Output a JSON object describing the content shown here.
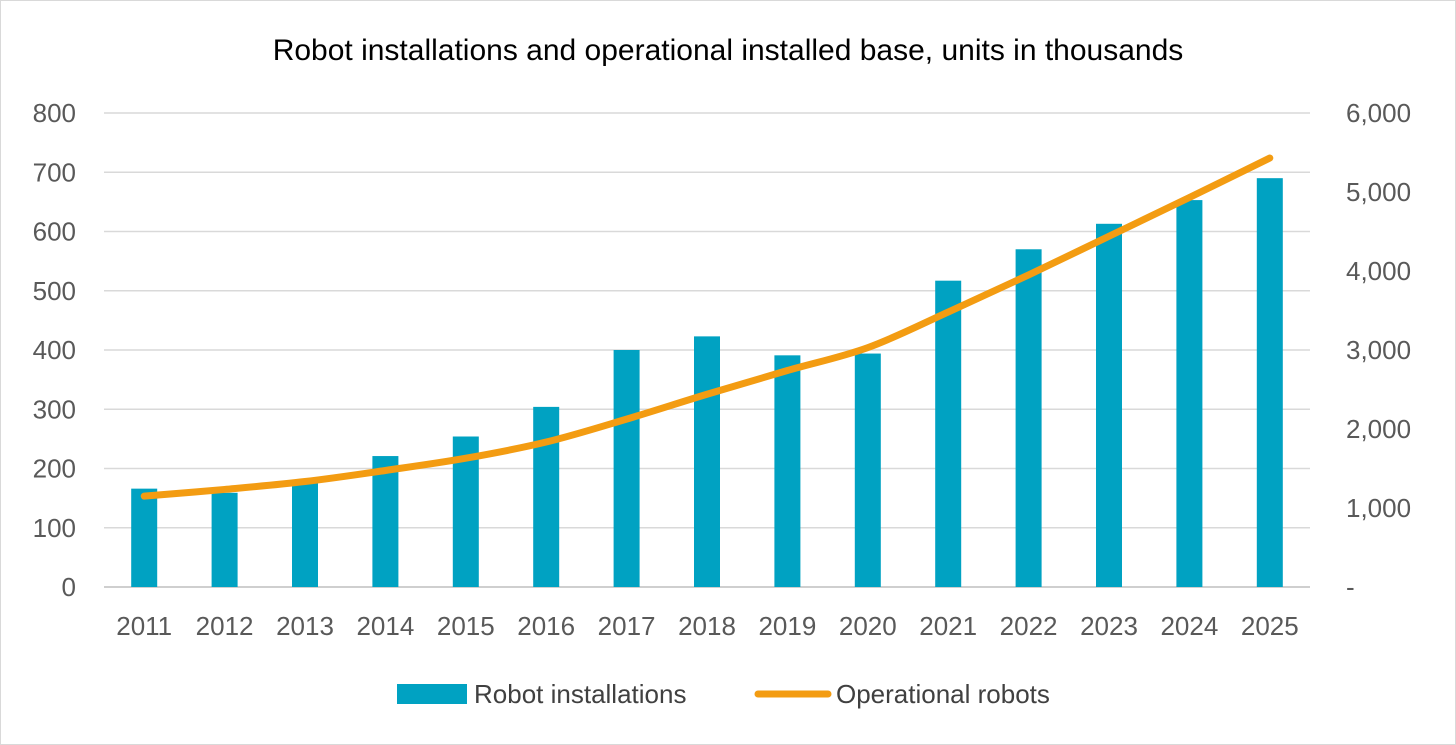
{
  "chart_data": {
    "type": "bar",
    "title": "Robot installations and operational installed base, units in thousands",
    "categories": [
      "2011",
      "2012",
      "2013",
      "2014",
      "2015",
      "2016",
      "2017",
      "2018",
      "2019",
      "2020",
      "2021",
      "2022",
      "2023",
      "2024",
      "2025"
    ],
    "series": [
      {
        "name": "Robot installations",
        "type": "bar",
        "axis": "left",
        "color": "#00A2C2",
        "values": [
          166,
          159,
          178,
          221,
          254,
          304,
          400,
          423,
          391,
          394,
          517,
          570,
          613,
          653,
          690
        ]
      },
      {
        "name": "Operational robots",
        "type": "line",
        "axis": "right",
        "color": "#F39C12",
        "values": [
          1150,
          1235,
          1335,
          1475,
          1630,
          1835,
          2125,
          2440,
          2740,
          3030,
          3480,
          3950,
          4440,
          4930,
          5430
        ]
      }
    ],
    "left_axis": {
      "ylim": [
        0,
        800
      ],
      "ticks": [
        0,
        100,
        200,
        300,
        400,
        500,
        600,
        700,
        800
      ],
      "tick_labels": [
        "0",
        "100",
        "200",
        "300",
        "400",
        "500",
        "600",
        "700",
        "800"
      ]
    },
    "right_axis": {
      "ylim": [
        0,
        6000
      ],
      "ticks": [
        0,
        1000,
        2000,
        3000,
        4000,
        5000,
        6000
      ],
      "tick_labels": [
        "-",
        "1,000",
        "2,000",
        "3,000",
        "4,000",
        "5,000",
        "6,000"
      ]
    },
    "grid": true,
    "legend_position": "bottom"
  }
}
